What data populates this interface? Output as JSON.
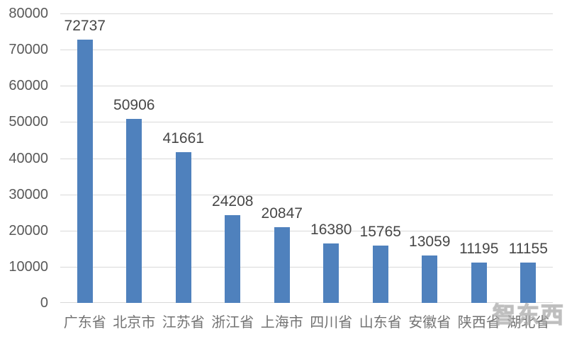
{
  "chart_data": {
    "type": "bar",
    "title": "",
    "xlabel": "",
    "ylabel": "",
    "categories": [
      "广东省",
      "北京市",
      "江苏省",
      "浙江省",
      "上海市",
      "四川省",
      "山东省",
      "安徽省",
      "陕西省",
      "湖北省"
    ],
    "values": [
      72737,
      50906,
      41661,
      24208,
      20847,
      16380,
      15765,
      13059,
      11195,
      11155
    ],
    "value_labels": [
      "72737",
      "50906",
      "41661",
      "24208",
      "20847",
      "16380",
      "15765",
      "13059",
      "11195",
      "11155"
    ],
    "ylim": [
      0,
      80000
    ],
    "yticks": [
      0,
      10000,
      20000,
      30000,
      40000,
      50000,
      60000,
      70000,
      80000
    ],
    "ytick_labels": [
      "0",
      "10000",
      "20000",
      "30000",
      "40000",
      "50000",
      "60000",
      "70000",
      "80000"
    ],
    "grid": true,
    "legend": "none",
    "colors": {
      "bar": "#4f81bd",
      "gridline": "#d9d9d9",
      "ytick_text": "#595959",
      "xtick_text": "#737373",
      "value_text": "#474747",
      "background": "#ffffff"
    }
  },
  "watermark": {
    "text": "智东西"
  }
}
